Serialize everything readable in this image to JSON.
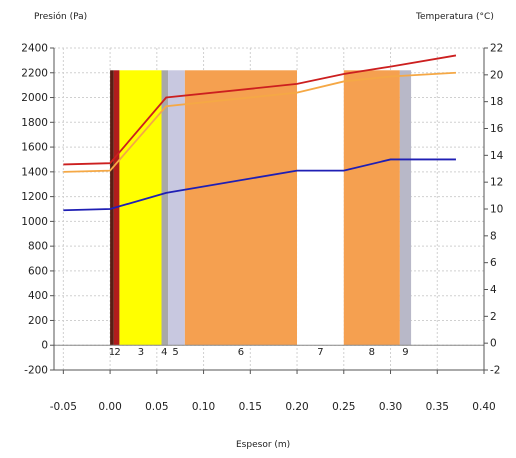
{
  "chart_data": {
    "type": "line",
    "title": "",
    "ylabel_left": "Presión (Pa)",
    "ylabel_right": "Temperatura (°C)",
    "xlabel": "Espesor (m)",
    "x_ticks": [
      "-0.05",
      "0.00",
      "0.05",
      "0.10",
      "0.15",
      "0.20",
      "0.25",
      "0.30",
      "0.35",
      "0.40"
    ],
    "y_left_ticks": [
      "-200",
      "0",
      "200",
      "400",
      "600",
      "800",
      "1000",
      "1200",
      "1400",
      "1600",
      "1800",
      "2000",
      "2200",
      "2400"
    ],
    "y_right_ticks": [
      "-2",
      "0",
      "2",
      "4",
      "6",
      "8",
      "10",
      "12",
      "14",
      "16",
      "18",
      "20",
      "22"
    ],
    "xlim": [
      -0.06,
      0.4
    ],
    "ylim_left": [
      -200,
      2400
    ],
    "ylim_right": [
      -2,
      22
    ],
    "grid": true,
    "layers": [
      {
        "label": "1",
        "x0": 0.0,
        "x1": 0.004,
        "color": "#5a1e14"
      },
      {
        "label": "2",
        "x0": 0.004,
        "x1": 0.01,
        "color": "#b01c1c"
      },
      {
        "label": "3",
        "x0": 0.01,
        "x1": 0.055,
        "color": "#ffff00"
      },
      {
        "label": "4",
        "x0": 0.055,
        "x1": 0.062,
        "color": "#a8a8a8"
      },
      {
        "label": "5",
        "x0": 0.062,
        "x1": 0.08,
        "color": "#c8c8e0"
      },
      {
        "label": "6",
        "x0": 0.08,
        "x1": 0.2,
        "color": "#f5a050"
      },
      {
        "label": "7",
        "x0": 0.2,
        "x1": 0.25,
        "color": "#ffffff"
      },
      {
        "label": "8",
        "x0": 0.25,
        "x1": 0.31,
        "color": "#f5a050"
      },
      {
        "label": "9",
        "x0": 0.31,
        "x1": 0.322,
        "color": "#b8b8c8"
      }
    ],
    "layer_top": 2220,
    "layer_label_y": -80,
    "series": [
      {
        "axis": "left",
        "color": "#cc1f1f",
        "x": [
          -0.05,
          0.0,
          0.06,
          0.2,
          0.25,
          0.3,
          0.37
        ],
        "y": [
          1460,
          1470,
          2000,
          2110,
          2190,
          2250,
          2340
        ]
      },
      {
        "axis": "left",
        "color": "#f5a845",
        "x": [
          -0.05,
          0.0,
          0.06,
          0.2,
          0.25,
          0.3,
          0.37
        ],
        "y": [
          1400,
          1410,
          1930,
          2040,
          2130,
          2170,
          2200
        ]
      },
      {
        "axis": "left",
        "color": "#1f1fb4",
        "x": [
          -0.05,
          0.0,
          0.06,
          0.2,
          0.25,
          0.3,
          0.37
        ],
        "y": [
          1090,
          1100,
          1230,
          1410,
          1410,
          1500,
          1500
        ]
      }
    ]
  }
}
